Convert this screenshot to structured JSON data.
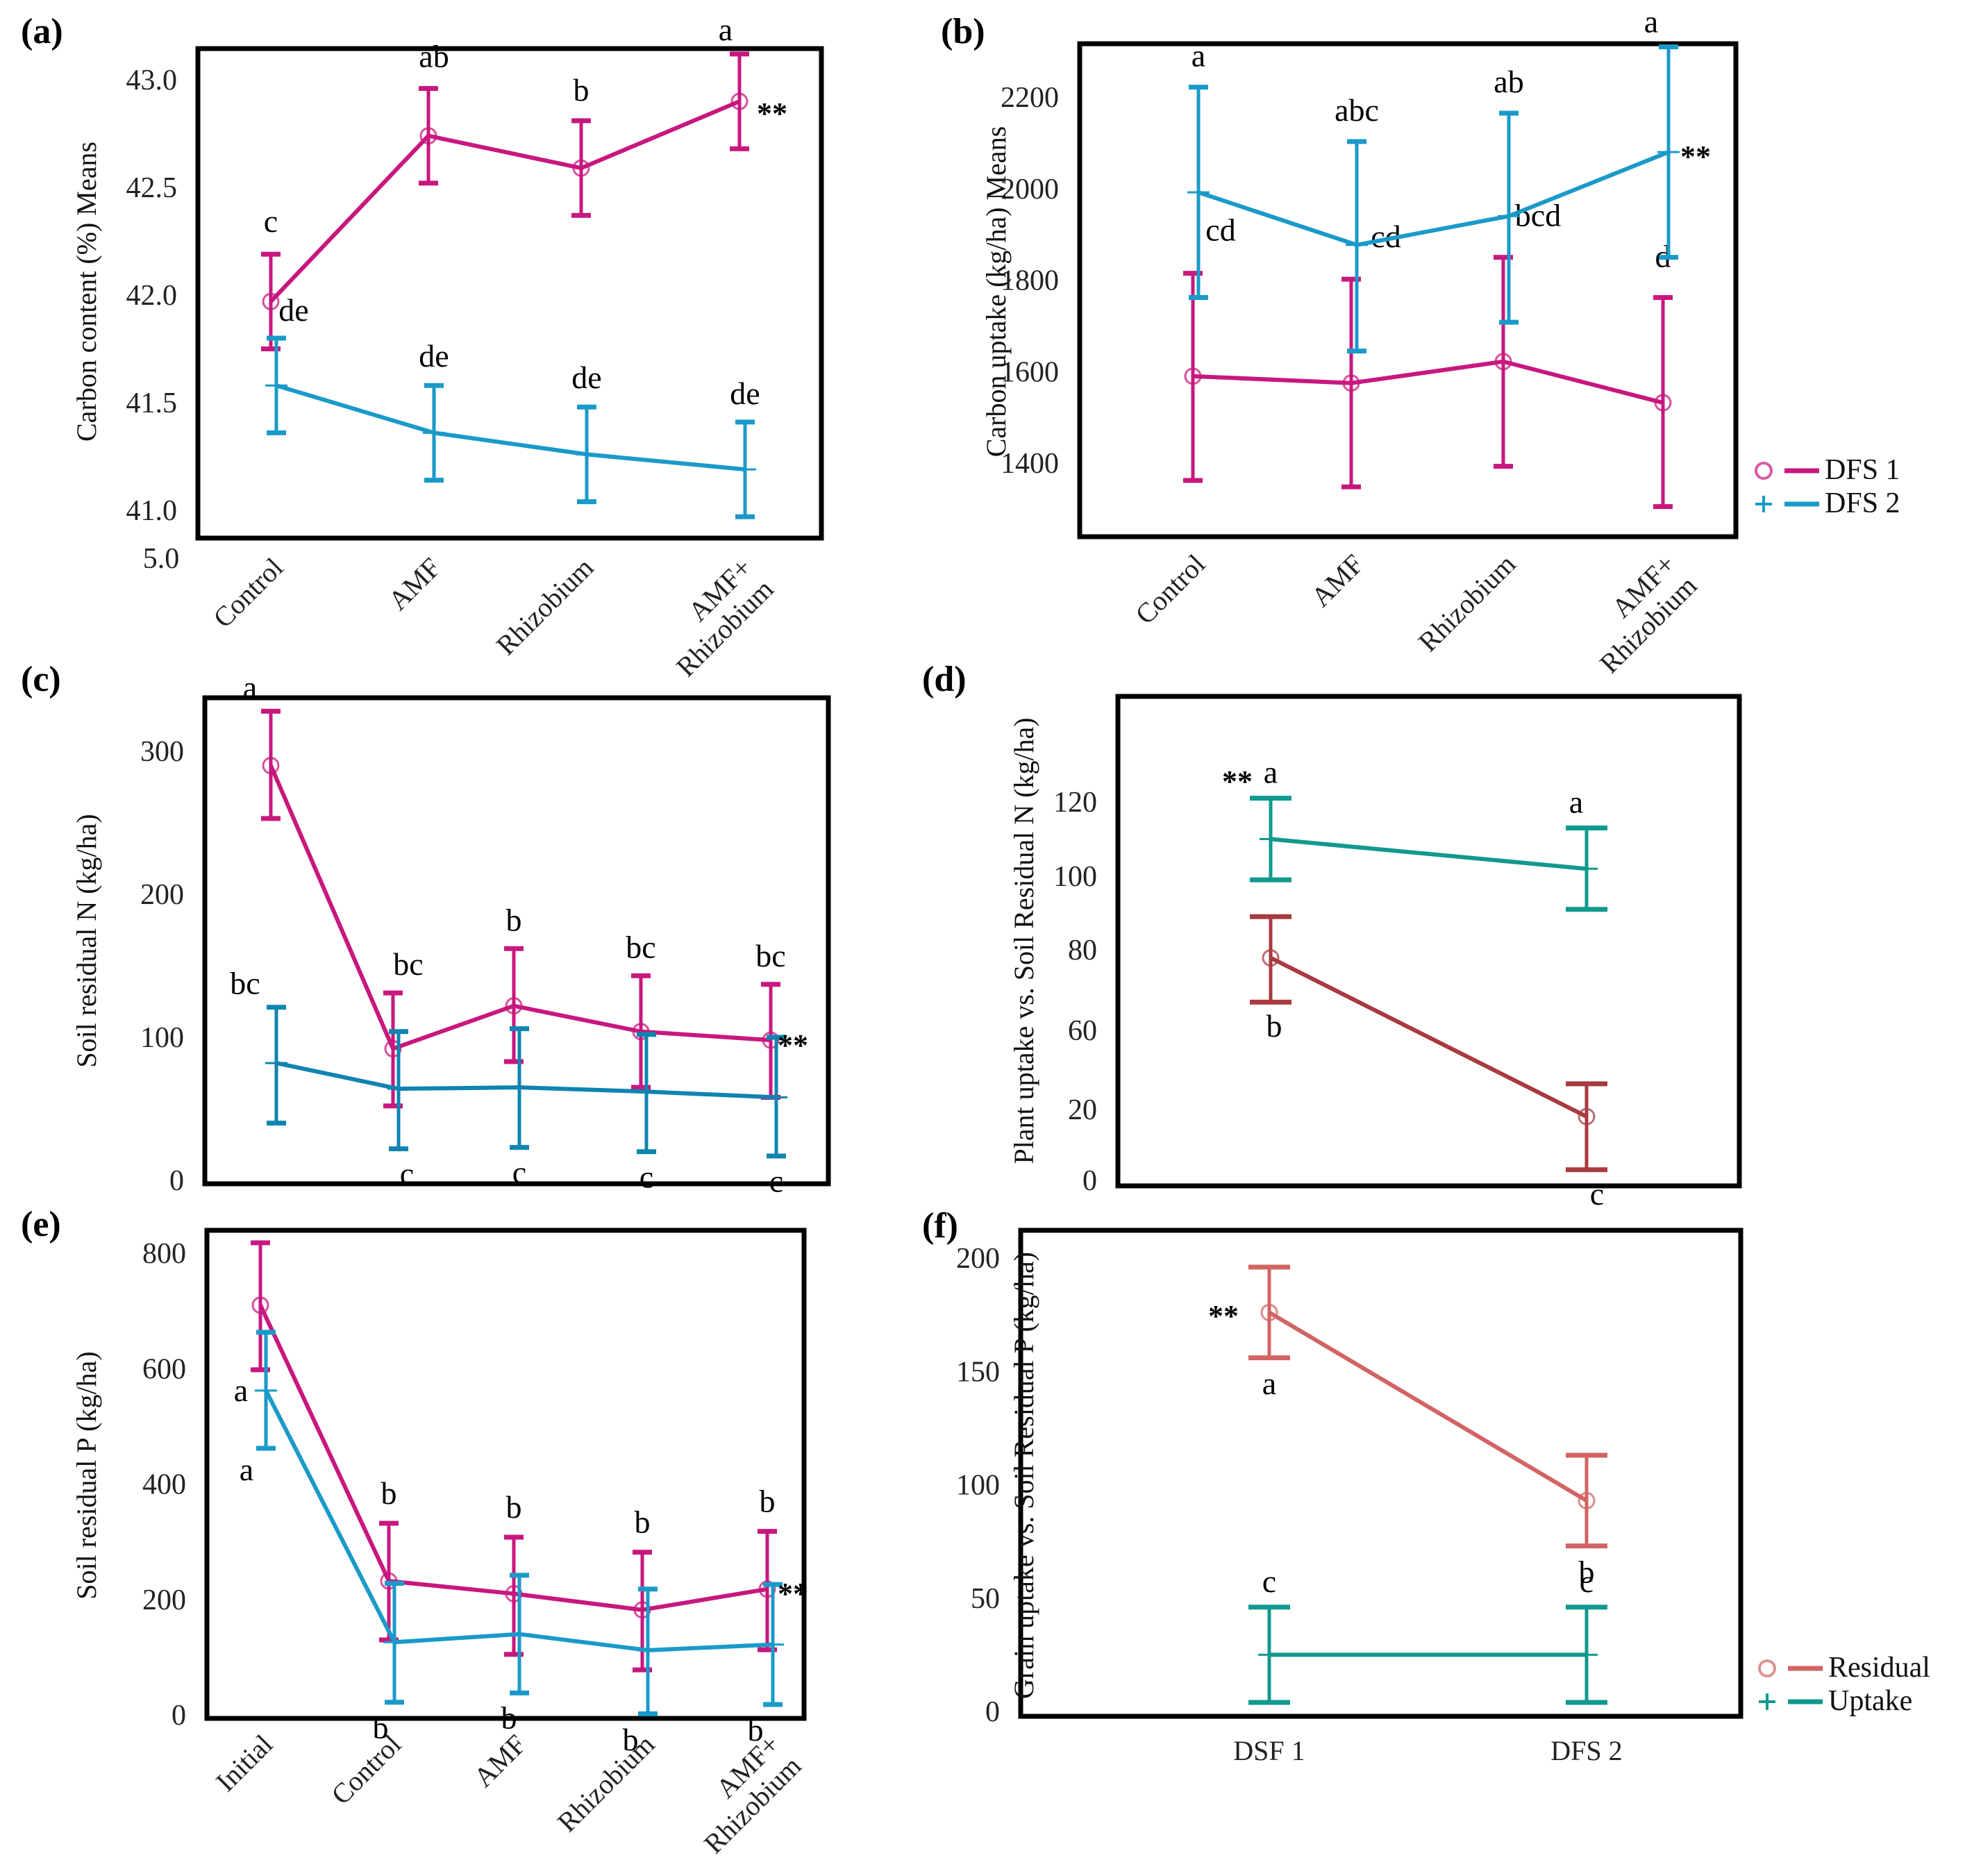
{
  "chart_data": [
    {
      "id": "a",
      "panel_label": "(a)",
      "type": "line",
      "title": "",
      "xlabel": "",
      "ylabel": "Carbon content (%) Means",
      "categories": [
        "Control",
        "AMF",
        "Rhizobium",
        "AMF+\nRhizobium"
      ],
      "yticks": [
        "43.0",
        "42.5",
        "42.0",
        "41.5",
        "41.0"
      ],
      "ytick_values": [
        43.0,
        42.5,
        42.0,
        41.5,
        41.0
      ],
      "extra_axis_text": "5.0",
      "ylim": [
        40.9,
        43.2
      ],
      "legend": null,
      "series": [
        {
          "name": "DFS 1",
          "color": "#c8177e",
          "marker": "circle",
          "values": [
            41.97,
            42.74,
            42.59,
            42.9
          ],
          "err_low": [
            41.75,
            42.52,
            42.37,
            42.68
          ],
          "err_high": [
            42.19,
            42.96,
            42.81,
            43.12
          ],
          "letters": [
            "c",
            "ab",
            "b",
            "a"
          ]
        },
        {
          "name": "DFS 2",
          "color": "#1a9ac9",
          "marker": "plus",
          "values": [
            41.58,
            41.36,
            41.26,
            41.19
          ],
          "err_low": [
            41.36,
            41.14,
            41.04,
            40.97
          ],
          "err_high": [
            41.8,
            41.58,
            41.48,
            41.41
          ],
          "letters": [
            "de",
            "de",
            "de",
            "de"
          ]
        }
      ],
      "annotation": "**"
    },
    {
      "id": "b",
      "panel_label": "(b)",
      "type": "line",
      "title": "",
      "xlabel": "",
      "ylabel": "Carbon uptake (kg/ha) Means",
      "categories": [
        "Control",
        "AMF",
        "Rhizobium",
        "AMF+\nRhizobium"
      ],
      "yticks": [
        "2200",
        "2000",
        "1800",
        "1600",
        "1400"
      ],
      "ytick_values": [
        2200,
        2000,
        1800,
        1600,
        1400
      ],
      "ylim": [
        1265,
        2320
      ],
      "legend": {
        "placement": "right",
        "entries": [
          "DFS 1",
          "DFS 2"
        ]
      },
      "series": [
        {
          "name": "DFS 1",
          "color": "#c8177e",
          "marker": "circle",
          "values": [
            1590,
            1575,
            1622,
            1532
          ],
          "err_low": [
            1362,
            1348,
            1393,
            1305
          ],
          "err_high": [
            1815,
            1802,
            1850,
            1762
          ],
          "letters": [
            "cd",
            "cd",
            "bcd",
            "d"
          ]
        },
        {
          "name": "DFS 2",
          "color": "#1a9ac9",
          "marker": "plus",
          "values": [
            1992,
            1877,
            1940,
            2080
          ],
          "err_low": [
            1762,
            1645,
            1708,
            1850
          ],
          "err_high": [
            2222,
            2103,
            2165,
            2310
          ],
          "letters": [
            "a",
            "abc",
            "ab",
            "a"
          ]
        }
      ],
      "annotation": "**"
    },
    {
      "id": "c",
      "panel_label": "(c)",
      "type": "line",
      "title": "",
      "xlabel": "",
      "ylabel": "Soil residual N (kg/ha)",
      "categories": [
        "Initial",
        "Control",
        "AMF",
        "Rhizobium",
        "AMF+\nRhizobium"
      ],
      "show_categories": false,
      "yticks": [
        "300",
        "200",
        "100",
        "0"
      ],
      "ytick_values": [
        300,
        200,
        100,
        0
      ],
      "ylim": [
        -2,
        340
      ],
      "legend": null,
      "series": [
        {
          "name": "DFS 1",
          "color": "#c8177e",
          "marker": "circle",
          "values": [
            290,
            92,
            122,
            104,
            98
          ],
          "err_low": [
            253,
            52,
            83,
            65,
            58
          ],
          "err_high": [
            328,
            131,
            162,
            143,
            137
          ],
          "letters": [
            "a",
            "bc",
            "b",
            "bc",
            "bc"
          ]
        },
        {
          "name": "DFS 2",
          "color": "#0f84b0",
          "marker": "plus",
          "values": [
            82,
            64,
            65,
            62,
            58
          ],
          "err_low": [
            40,
            22,
            23,
            20,
            17
          ],
          "err_high": [
            121,
            104,
            106,
            102,
            100
          ],
          "letters": [
            "bc",
            "c",
            "c",
            "c",
            "c"
          ]
        }
      ],
      "annotation": "**"
    },
    {
      "id": "d",
      "panel_label": "(d)",
      "type": "line",
      "title": "",
      "xlabel": "",
      "ylabel": "Plant uptake vs. Soil Residual N (kg/ha)",
      "categories": [
        "DFS 1",
        "DFS 2"
      ],
      "show_categories": false,
      "yticks": [
        "120",
        "100",
        "80",
        "60",
        "20",
        "0"
      ],
      "ytick_values": [
        120,
        100,
        80,
        60,
        20,
        0
      ],
      "ylim": [
        0,
        125
      ],
      "legend": null,
      "series": [
        {
          "name": "Uptake",
          "color": "#11998e",
          "marker": "plus",
          "values": [
            110,
            102
          ],
          "err_low": [
            99,
            91
          ],
          "err_high": [
            121,
            113
          ],
          "letters": [
            "a",
            "a"
          ]
        },
        {
          "name": "Residual",
          "color": "#a83a40",
          "marker": "circle",
          "values": [
            78,
            18
          ],
          "err_low": [
            67,
            3
          ],
          "err_high": [
            89,
            33
          ],
          "letters": [
            "b",
            "c"
          ]
        }
      ],
      "annotation": "**"
    },
    {
      "id": "e",
      "panel_label": "(e)",
      "type": "line",
      "title": "",
      "xlabel": "",
      "ylabel": "Soil residual P (kg/ha)",
      "categories": [
        "Initial",
        "Control",
        "AMF",
        "Rhizobium",
        "AMF+\nRhizobium"
      ],
      "yticks": [
        "800",
        "600",
        "400",
        "200",
        "0"
      ],
      "ytick_values": [
        800,
        600,
        400,
        200,
        0
      ],
      "ylim": [
        -5,
        860
      ],
      "legend": null,
      "series": [
        {
          "name": "DFS 1",
          "color": "#c8177e",
          "marker": "circle",
          "values": [
            710,
            232,
            210,
            182,
            218
          ],
          "err_low": [
            598,
            130,
            105,
            78,
            113
          ],
          "err_high": [
            818,
            332,
            308,
            282,
            318
          ],
          "letters": [
            "a",
            "b",
            "b",
            "b",
            "b"
          ]
        },
        {
          "name": "DFS 2",
          "color": "#1a9ac9",
          "marker": "plus",
          "values": [
            562,
            126,
            140,
            112,
            122
          ],
          "err_low": [
            462,
            22,
            38,
            2,
            18
          ],
          "err_high": [
            663,
            228,
            242,
            218,
            226
          ],
          "letters": [
            "a",
            "b",
            "b",
            "b",
            "b"
          ]
        }
      ],
      "annotation": "**"
    },
    {
      "id": "f",
      "panel_label": "(f)",
      "type": "line",
      "title": "",
      "xlabel": "",
      "ylabel": "Grain  uptake vs. Soil Residual P (kg/ha)",
      "categories": [
        "DSF 1",
        "DFS 2"
      ],
      "yticks": [
        "200",
        "150",
        "100",
        "50",
        "0"
      ],
      "ytick_values": [
        200,
        150,
        100,
        50,
        0
      ],
      "ylim": [
        -2,
        214
      ],
      "legend": {
        "placement": "right",
        "entries": [
          "Residual",
          "Uptake"
        ]
      },
      "series": [
        {
          "name": "Residual",
          "color": "#d26464",
          "marker": "circle",
          "values": [
            176,
            93
          ],
          "err_low": [
            156,
            73
          ],
          "err_high": [
            196,
            113
          ],
          "letters": [
            "a",
            "b"
          ]
        },
        {
          "name": "Uptake",
          "color": "#11998e",
          "marker": "plus",
          "values": [
            25,
            25
          ],
          "err_low": [
            4,
            4
          ],
          "err_high": [
            46,
            46
          ],
          "letters": [
            "c",
            "c"
          ]
        }
      ],
      "annotation": "**"
    }
  ]
}
